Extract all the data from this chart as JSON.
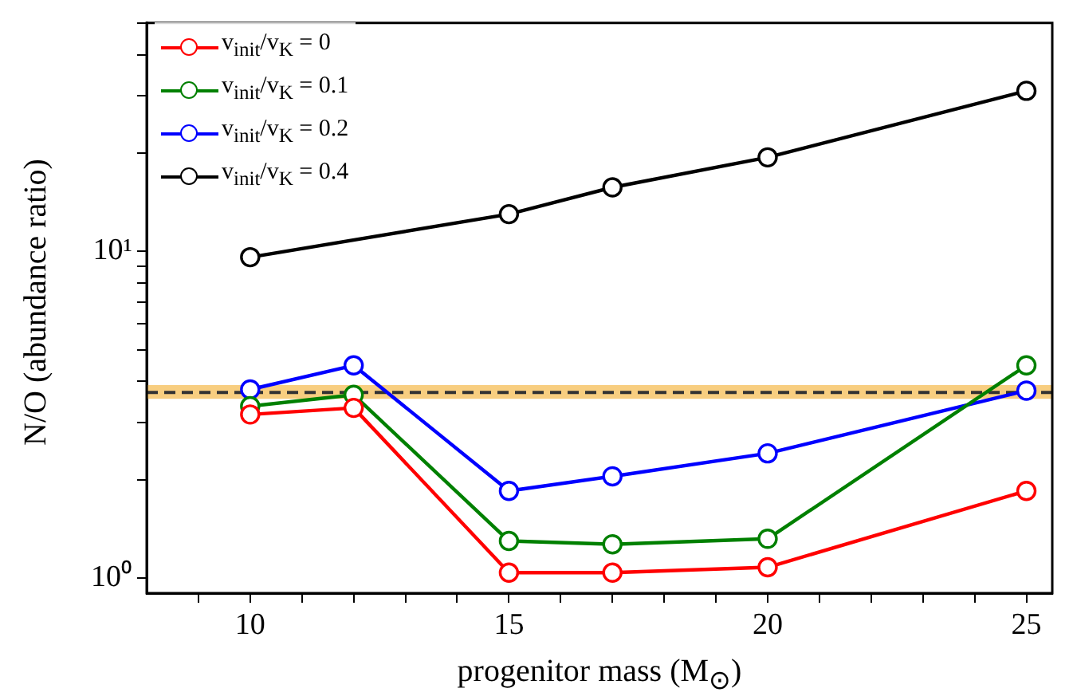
{
  "chart_data": {
    "type": "line",
    "xlabel": "progenitor mass (M$_{⊙}$)",
    "ylabel": "N/O (abundance ratio)",
    "x": [
      10,
      12,
      15,
      17,
      20,
      25
    ],
    "series": [
      {
        "name": "v$_{init}$/v$_{K}$ = 0",
        "color": "#ff0000",
        "values": [
          3.17,
          3.32,
          1.04,
          1.04,
          1.08,
          1.85
        ]
      },
      {
        "name": "v$_{init}$/v$_{K}$ = 0.1",
        "color": "#008000",
        "values": [
          3.36,
          3.64,
          1.3,
          1.27,
          1.32,
          4.48
        ]
      },
      {
        "name": "v$_{init}$/v$_{K}$ = 0.2",
        "color": "#0000ff",
        "values": [
          3.78,
          4.48,
          1.85,
          2.05,
          2.41,
          3.75
        ]
      },
      {
        "name": "v$_{init}$/v$_{K}$ = 0.4",
        "color": "#000000",
        "x": [
          10,
          15,
          17,
          20,
          25
        ],
        "values": [
          9.6,
          13.0,
          15.7,
          19.4,
          31
        ]
      }
    ],
    "xlim": [
      8,
      25.5
    ],
    "xticks": [
      {
        "value": 9,
        "label": null
      },
      10,
      {
        "value": 11,
        "label": null
      },
      {
        "value": 12,
        "label": null
      },
      {
        "value": 13,
        "label": null
      },
      {
        "value": 14,
        "label": null
      },
      15,
      {
        "value": 16,
        "label": null
      },
      {
        "value": 17,
        "label": null
      },
      {
        "value": 18,
        "label": null
      },
      {
        "value": 19,
        "label": null
      },
      20,
      {
        "value": 21,
        "label": null
      },
      {
        "value": 22,
        "label": null
      },
      {
        "value": 23,
        "label": null
      },
      {
        "value": 24,
        "label": null
      },
      25
    ],
    "ylim": [
      0.9,
      50
    ],
    "log": "y",
    "yticks": [
      {
        "value": 1,
        "label": "10⁰"
      },
      {
        "value": 2,
        "label": null
      },
      {
        "value": 3,
        "label": null
      },
      {
        "value": 4,
        "label": null
      },
      {
        "value": 5,
        "label": null
      },
      {
        "value": 6,
        "label": null
      },
      {
        "value": 7,
        "label": null
      },
      {
        "value": 8,
        "label": null
      },
      {
        "value": 9,
        "label": null
      },
      {
        "value": 10,
        "label": "10¹"
      },
      {
        "value": 20,
        "label": null
      },
      {
        "value": 30,
        "label": null
      },
      {
        "value": 40,
        "label": null
      },
      {
        "value": 50,
        "label": null
      }
    ],
    "ref_lines": [
      {
        "axis": "y",
        "value": 3.7,
        "color": "#333333",
        "line_style": "dashed"
      }
    ],
    "bands": [
      {
        "axis": "y",
        "from": 3.54,
        "to": 3.9,
        "color": "#f7c56a"
      }
    ],
    "legend": "top left",
    "marker": "circle",
    "line_style": "solid"
  }
}
